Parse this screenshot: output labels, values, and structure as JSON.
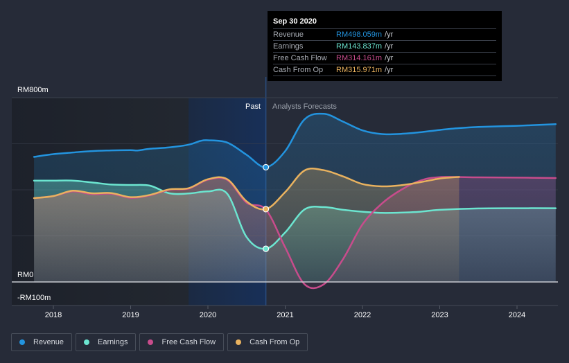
{
  "tooltip": {
    "date": "Sep 30 2020",
    "rows": [
      {
        "name": "Revenue",
        "value": "RM498.059m",
        "unit": "/yr",
        "color": "#2394df"
      },
      {
        "name": "Earnings",
        "value": "RM143.837m",
        "unit": "/yr",
        "color": "#6ce5d0"
      },
      {
        "name": "Free Cash Flow",
        "value": "RM314.161m",
        "unit": "/yr",
        "color": "#c84c8c"
      },
      {
        "name": "Cash From Op",
        "value": "RM315.971m",
        "unit": "/yr",
        "color": "#e9b25f"
      }
    ]
  },
  "legend": [
    {
      "label": "Revenue",
      "color": "#2394df"
    },
    {
      "label": "Earnings",
      "color": "#6ce5d0"
    },
    {
      "label": "Free Cash Flow",
      "color": "#c84c8c"
    },
    {
      "label": "Cash From Op",
      "color": "#e9b25f"
    }
  ],
  "chart_data": {
    "type": "line",
    "title": "",
    "xlabel": "",
    "ylabel": "",
    "currency": "RM",
    "ylim": [
      -100,
      800
    ],
    "y_tick_labels": [
      "RM800m",
      "RM0",
      "-RM100m"
    ],
    "x_tick_labels": [
      "2018",
      "2019",
      "2020",
      "2021",
      "2022",
      "2023",
      "2024"
    ],
    "xlim": [
      2017.5,
      2024.5
    ],
    "regions": {
      "past_label": "Past",
      "forecast_label": "Analysts Forecasts",
      "divider_x": 2020.75
    },
    "highlight_point": {
      "x": 2020.75,
      "label": "Sep 30 2020"
    },
    "grid": true,
    "legend_position": "bottom-left",
    "series": [
      {
        "name": "Revenue",
        "color": "#2394df",
        "points": [
          [
            2017.75,
            543
          ],
          [
            2018.0,
            555
          ],
          [
            2018.25,
            562
          ],
          [
            2018.5,
            568
          ],
          [
            2018.75,
            571
          ],
          [
            2019.0,
            572
          ],
          [
            2019.1,
            571
          ],
          [
            2019.25,
            578
          ],
          [
            2019.5,
            584
          ],
          [
            2019.75,
            596
          ],
          [
            2019.9,
            612
          ],
          [
            2020.0,
            615
          ],
          [
            2020.25,
            605
          ],
          [
            2020.5,
            552
          ],
          [
            2020.75,
            498
          ],
          [
            2021.0,
            568
          ],
          [
            2021.25,
            706
          ],
          [
            2021.5,
            730
          ],
          [
            2021.75,
            696
          ],
          [
            2022.0,
            658
          ],
          [
            2022.25,
            642
          ],
          [
            2022.5,
            643
          ],
          [
            2022.75,
            650
          ],
          [
            2023.0,
            660
          ],
          [
            2023.25,
            668
          ],
          [
            2023.5,
            673
          ],
          [
            2024.0,
            678
          ],
          [
            2024.5,
            685
          ]
        ]
      },
      {
        "name": "Earnings",
        "color": "#6ce5d0",
        "points": [
          [
            2017.75,
            440
          ],
          [
            2018.0,
            440
          ],
          [
            2018.25,
            440
          ],
          [
            2018.5,
            432
          ],
          [
            2018.75,
            423
          ],
          [
            2019.0,
            421
          ],
          [
            2019.25,
            418
          ],
          [
            2019.5,
            385
          ],
          [
            2019.75,
            384
          ],
          [
            2020.0,
            393
          ],
          [
            2020.25,
            383
          ],
          [
            2020.5,
            195
          ],
          [
            2020.75,
            144
          ],
          [
            2021.0,
            215
          ],
          [
            2021.25,
            315
          ],
          [
            2021.5,
            325
          ],
          [
            2021.75,
            313
          ],
          [
            2022.0,
            305
          ],
          [
            2022.25,
            300
          ],
          [
            2022.5,
            301
          ],
          [
            2022.75,
            305
          ],
          [
            2023.0,
            313
          ],
          [
            2023.5,
            319
          ],
          [
            2024.0,
            320
          ],
          [
            2024.5,
            320
          ]
        ]
      },
      {
        "name": "Free Cash Flow",
        "color": "#c84c8c",
        "points": [
          [
            2017.75,
            364
          ],
          [
            2018.0,
            373
          ],
          [
            2018.25,
            393
          ],
          [
            2018.5,
            381
          ],
          [
            2018.75,
            383
          ],
          [
            2019.0,
            365
          ],
          [
            2019.25,
            376
          ],
          [
            2019.5,
            400
          ],
          [
            2019.75,
            405
          ],
          [
            2020.0,
            444
          ],
          [
            2020.25,
            443
          ],
          [
            2020.5,
            344
          ],
          [
            2020.75,
            314
          ],
          [
            2021.0,
            150
          ],
          [
            2021.25,
            -10
          ],
          [
            2021.5,
            -10
          ],
          [
            2021.75,
            100
          ],
          [
            2022.0,
            250
          ],
          [
            2022.25,
            340
          ],
          [
            2022.5,
            400
          ],
          [
            2022.75,
            440
          ],
          [
            2023.0,
            455
          ],
          [
            2023.5,
            454
          ],
          [
            2024.0,
            453
          ],
          [
            2024.5,
            451
          ]
        ]
      },
      {
        "name": "Cash From Op",
        "color": "#e9b25f",
        "points": [
          [
            2017.75,
            364
          ],
          [
            2018.0,
            373
          ],
          [
            2018.25,
            396
          ],
          [
            2018.5,
            385
          ],
          [
            2018.75,
            386
          ],
          [
            2019.0,
            368
          ],
          [
            2019.25,
            378
          ],
          [
            2019.5,
            402
          ],
          [
            2019.75,
            407
          ],
          [
            2020.0,
            446
          ],
          [
            2020.25,
            446
          ],
          [
            2020.5,
            350
          ],
          [
            2020.75,
            316
          ],
          [
            2021.0,
            390
          ],
          [
            2021.25,
            484
          ],
          [
            2021.5,
            485
          ],
          [
            2021.75,
            458
          ],
          [
            2022.0,
            425
          ],
          [
            2022.25,
            415
          ],
          [
            2022.5,
            420
          ],
          [
            2022.75,
            433
          ],
          [
            2023.0,
            449
          ],
          [
            2023.25,
            456
          ]
        ]
      }
    ]
  }
}
